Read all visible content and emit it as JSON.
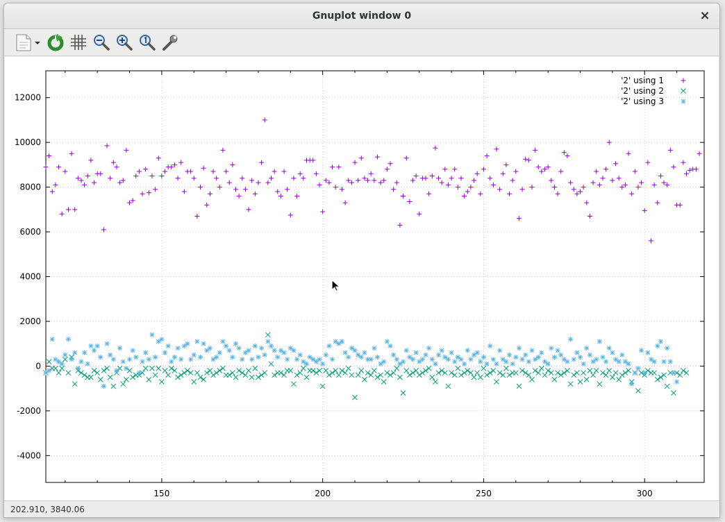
{
  "window": {
    "title": "Gnuplot window 0",
    "close_glyph": "×"
  },
  "toolbar": {
    "buttons": [
      {
        "name": "export-menu-button",
        "icon": "document-export-icon"
      },
      {
        "name": "replot-button",
        "icon": "refresh-icon"
      },
      {
        "name": "grid-button",
        "icon": "grid-icon"
      },
      {
        "name": "zoom-previous-button",
        "icon": "zoom-out-icon"
      },
      {
        "name": "zoom-next-button",
        "icon": "zoom-in-icon"
      },
      {
        "name": "unzoom-button",
        "icon": "zoom-reset-icon"
      },
      {
        "name": "configure-button",
        "icon": "wrench-icon"
      }
    ]
  },
  "status": {
    "coords": "202.910,  3840.06"
  },
  "cursor": {
    "x": 202.9,
    "y": 3840
  },
  "colors": {
    "series1": "#9400d3",
    "series2": "#009e73",
    "series3": "#56b4e9",
    "grid": "#c8c8c8"
  },
  "chart_data": {
    "type": "scatter",
    "title": "",
    "xlabel": "",
    "ylabel": "",
    "xlim": [
      114,
      318.5
    ],
    "ylim": [
      -5200,
      13200
    ],
    "xticks": [
      150,
      200,
      250,
      300
    ],
    "yticks": [
      -4000,
      -2000,
      0,
      2000,
      4000,
      6000,
      8000,
      10000,
      12000
    ],
    "grid": true,
    "legend": "top-right",
    "series": [
      {
        "name": "'2' using 1",
        "marker": "plus",
        "x_start": 114,
        "x_step": 1,
        "values": [
          8900,
          9400,
          7800,
          8100,
          8900,
          6800,
          8700,
          7000,
          9500,
          7000,
          8400,
          8300,
          8100,
          8500,
          9200,
          8200,
          8600,
          8600,
          6100,
          9850,
          8400,
          9100,
          8900,
          8200,
          8300,
          9650,
          7300,
          7400,
          8500,
          8700,
          7700,
          8800,
          7750,
          8500,
          7900,
          9300,
          8500,
          8700,
          8900,
          8900,
          9000,
          8400,
          9100,
          7800,
          8700,
          8700,
          8400,
          6700,
          8000,
          8850,
          7200,
          7700,
          8700,
          8400,
          8000,
          9650,
          8700,
          8200,
          9000,
          7900,
          7600,
          8400,
          7900,
          7000,
          8300,
          7700,
          8200,
          9100,
          11000,
          8200,
          8400,
          8700,
          7800,
          7600,
          8700,
          7900,
          6750,
          8400,
          7600,
          8600,
          8400,
          9200,
          9200,
          9200,
          8600,
          8100,
          6900,
          8300,
          8200,
          8900,
          8000,
          8900,
          7900,
          7300,
          8300,
          8200,
          9100,
          8300,
          9300,
          8400,
          8300,
          8600,
          8300,
          9350,
          8200,
          8300,
          8800,
          9050,
          7900,
          8200,
          6300,
          7600,
          9300,
          7350,
          8300,
          8500,
          6800,
          8400,
          8400,
          7700,
          8500,
          9750,
          8400,
          8200,
          8800,
          8100,
          8400,
          8800,
          8000,
          8400,
          7600,
          7800,
          8000,
          8300,
          8600,
          7700,
          8800,
          9400,
          8400,
          8100,
          9700,
          7900,
          8600,
          9000,
          7700,
          8300,
          8700,
          6600,
          7900,
          9250,
          9200,
          8000,
          9650,
          8900,
          8700,
          8800,
          8900,
          8300,
          8000,
          7700,
          8700,
          9550,
          9400,
          8200,
          7900,
          7700,
          7800,
          8000,
          7300,
          6700,
          8200,
          8700,
          8100,
          8400,
          8800,
          10000,
          8300,
          9050,
          8400,
          8000,
          8100,
          9500,
          7700,
          8700,
          8000,
          8200,
          6950,
          9100,
          5600,
          8100,
          7300,
          8500,
          8200,
          8100,
          9650,
          8900,
          7200,
          7200,
          9100,
          8600,
          8750,
          8800,
          8800,
          9500
        ]
      },
      {
        "name": "'2' using 2",
        "marker": "cross",
        "x_start": 114,
        "x_step": 1,
        "values": [
          -300,
          200,
          -100,
          -100,
          -300,
          -100,
          300,
          -300,
          400,
          -800,
          -200,
          -300,
          -400,
          -500,
          -500,
          -200,
          -300,
          -600,
          -200,
          -100,
          -500,
          -900,
          -300,
          -100,
          -800,
          -600,
          -200,
          -500,
          -400,
          -400,
          -300,
          -100,
          -600,
          -100,
          -400,
          -100,
          -700,
          -200,
          -400,
          -100,
          -200,
          -500,
          -400,
          -300,
          -200,
          -300,
          -700,
          -300,
          -500,
          -600,
          -300,
          -200,
          -400,
          -300,
          -200,
          -100,
          -400,
          -400,
          -300,
          -500,
          -200,
          -300,
          -400,
          -200,
          -500,
          -100,
          -500,
          -400,
          -300,
          1400,
          100,
          -400,
          -300,
          -300,
          -400,
          -200,
          -200,
          -800,
          -400,
          -300,
          -100,
          -500,
          -200,
          -200,
          -300,
          -200,
          -900,
          -200,
          -400,
          -300,
          -200,
          -400,
          -200,
          -300,
          -100,
          -400,
          -1400,
          -400,
          -200,
          -600,
          -300,
          -400,
          -200,
          -500,
          -400,
          -700,
          -300,
          -400,
          -300,
          -100,
          -500,
          -1200,
          -200,
          -400,
          -300,
          -200,
          -400,
          -300,
          -200,
          -100,
          -500,
          -700,
          -300,
          -200,
          -300,
          -900,
          -300,
          -400,
          -100,
          -400,
          -300,
          -200,
          -300,
          -500,
          -300,
          -500,
          -100,
          -400,
          -300,
          -200,
          -700,
          -300,
          -400,
          -100,
          -400,
          -300,
          -300,
          -900,
          -200,
          -300,
          -400,
          -600,
          -200,
          -300,
          -100,
          -400,
          -200,
          -300,
          -600,
          -300,
          -400,
          -300,
          -200,
          -800,
          -400,
          -300,
          -700,
          -300,
          -600,
          -200,
          -400,
          -200,
          -800,
          -300,
          -400,
          -200,
          -500,
          -300,
          -600,
          -400,
          -300,
          -200,
          -700,
          -300,
          -1100,
          -300,
          -400,
          -200,
          -300,
          -300,
          -600,
          -500,
          -400,
          -900,
          -300,
          -1200,
          -300,
          -400,
          -200,
          -300
        ]
      },
      {
        "name": "'2' using 3",
        "marker": "star",
        "x_start": 114,
        "x_step": 1,
        "values": [
          -300,
          -200,
          1200,
          300,
          200,
          100,
          500,
          1200,
          300,
          600,
          -100,
          200,
          600,
          100,
          900,
          700,
          900,
          400,
          -900,
          1000,
          500,
          300,
          -200,
          800,
          200,
          -100,
          300,
          700,
          400,
          -300,
          200,
          600,
          300,
          1400,
          400,
          1100,
          1200,
          600,
          900,
          200,
          400,
          800,
          300,
          900,
          1000,
          300,
          500,
          1100,
          400,
          1000,
          700,
          800,
          300,
          400,
          600,
          1100,
          900,
          700,
          400,
          1000,
          800,
          300,
          600,
          700,
          300,
          900,
          400,
          800,
          500,
          1100,
          900,
          700,
          400,
          700,
          600,
          300,
          800,
          700,
          300,
          500,
          200,
          100,
          400,
          300,
          200,
          300,
          100,
          500,
          900,
          300,
          1100,
          1000,
          1100,
          600,
          400,
          800,
          700,
          500,
          400,
          600,
          300,
          300,
          800,
          400,
          100,
          200,
          1100,
          900,
          500,
          300,
          100,
          200,
          700,
          400,
          300,
          600,
          200,
          300,
          500,
          800,
          300,
          100,
          500,
          700,
          400,
          300,
          600,
          200,
          400,
          300,
          100,
          700,
          300,
          500,
          600,
          200,
          400,
          100,
          900,
          300,
          100,
          700,
          300,
          200,
          500,
          100,
          400,
          800,
          300,
          500,
          200,
          700,
          300,
          400,
          600,
          200,
          100,
          800,
          400,
          700,
          500,
          300,
          200,
          1200,
          300,
          600,
          400,
          100,
          800,
          500,
          200,
          300,
          1100,
          400,
          200,
          800,
          600,
          300,
          200,
          500,
          200,
          100,
          -800,
          -300,
          -100,
          700,
          -300,
          600,
          300,
          200,
          900,
          1100,
          200,
          800,
          200,
          -300,
          -700
        ]
      }
    ]
  }
}
